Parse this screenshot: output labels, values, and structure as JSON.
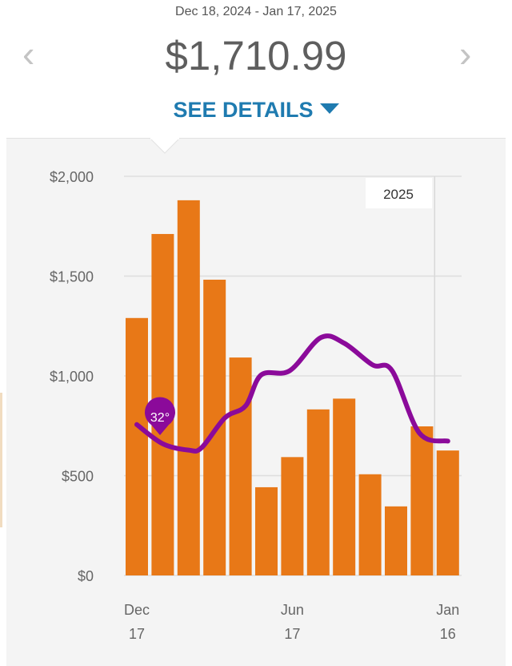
{
  "header": {
    "date_range": "Dec 18, 2024 - Jan 17, 2025",
    "total": "$1,710.99",
    "prev_icon": "chevron-left-icon",
    "next_icon": "chevron-right-icon",
    "prev_label": "‹",
    "next_label": "›",
    "see_details": "SEE DETAILS",
    "see_details_icon": "caret-down-icon"
  },
  "colors": {
    "bar": "#e87817",
    "line": "#8b0a9a",
    "link": "#1f7bb0"
  },
  "chart_data": {
    "type": "bar",
    "ylim": [
      0,
      2000
    ],
    "y_ticks": [
      "$0",
      "$500",
      "$1,000",
      "$1,500",
      "$2,000"
    ],
    "y_tick_values": [
      0,
      500,
      1000,
      1500,
      2000
    ],
    "x_tick_labels": [
      {
        "line1": "Dec",
        "line2": "17",
        "bar": 0
      },
      {
        "line1": "Jun",
        "line2": "17",
        "bar": 6
      },
      {
        "line1": "Jan",
        "line2": "16",
        "bar": 12
      }
    ],
    "values": [
      1290,
      1711,
      1880,
      1482,
      1092,
      442,
      593,
      832,
      886,
      507,
      346,
      747,
      626
    ],
    "year_marker": {
      "label": "2025",
      "between_bars": [
        11,
        12
      ]
    },
    "grid": true,
    "temperature_line": {
      "marker_label": "32°",
      "points": [
        [
          0,
          756
        ],
        [
          1,
          660
        ],
        [
          2,
          628
        ],
        [
          2.5,
          640
        ],
        [
          3.4,
          790
        ],
        [
          4.2,
          850
        ],
        [
          4.8,
          1005
        ],
        [
          5.9,
          1026
        ],
        [
          7.1,
          1192
        ],
        [
          8,
          1164
        ],
        [
          9.1,
          1055
        ],
        [
          9.85,
          1026
        ],
        [
          10.9,
          714
        ],
        [
          12,
          673
        ]
      ]
    }
  }
}
